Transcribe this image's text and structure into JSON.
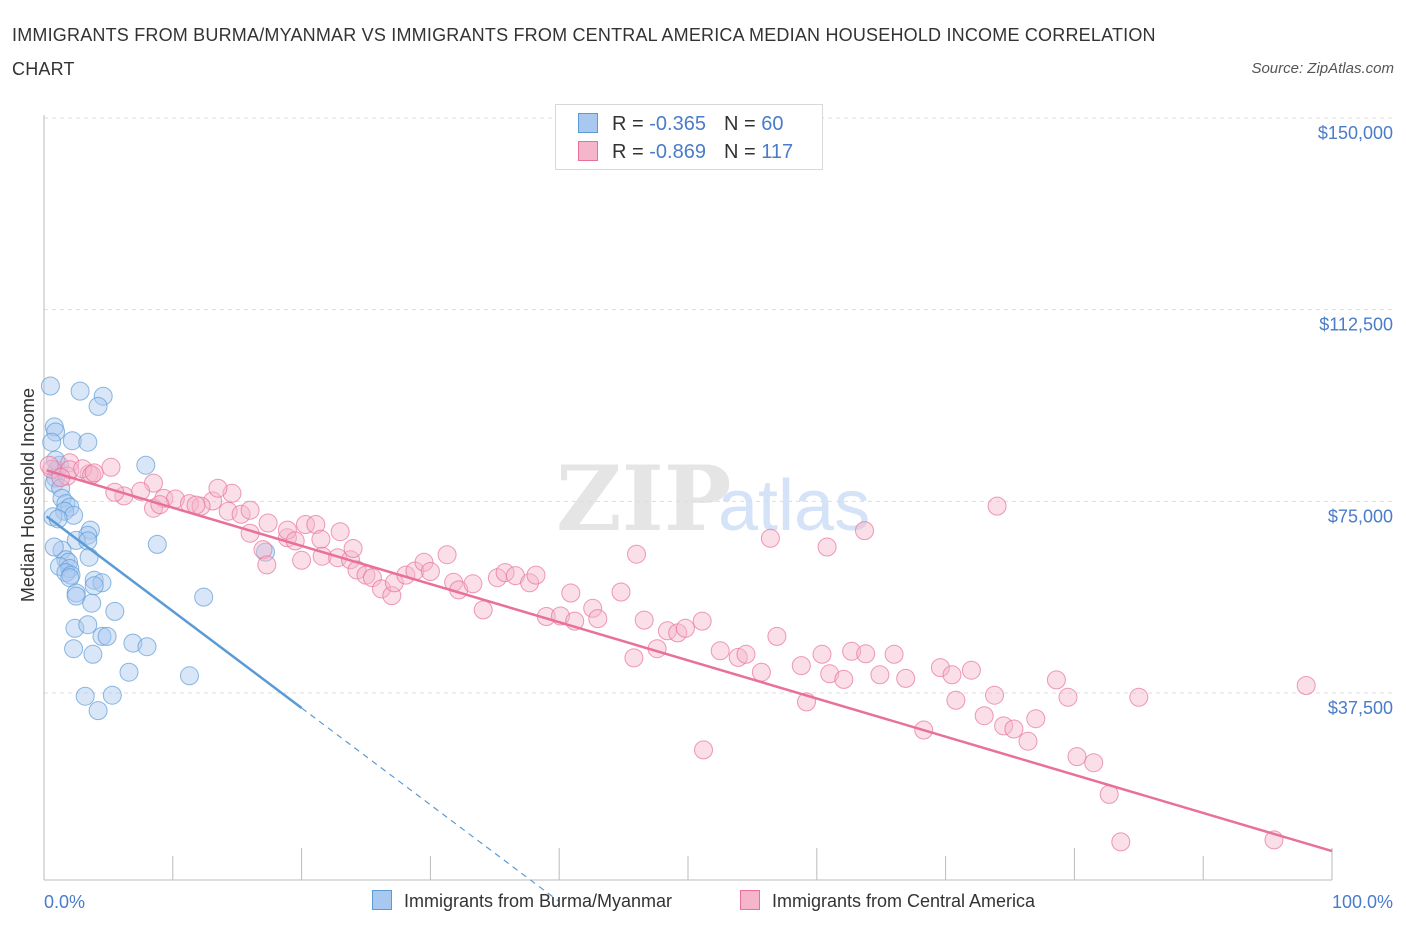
{
  "title": "IMMIGRANTS FROM BURMA/MYANMAR VS IMMIGRANTS FROM CENTRAL AMERICA MEDIAN HOUSEHOLD INCOME CORRELATION CHART",
  "source": "Source: ZipAtlas.com",
  "watermark": {
    "zip": "ZIP",
    "atlas": "atlas"
  },
  "legend": [
    {
      "r_label": "R = ",
      "r_value": "-0.365",
      "n_label": "N = ",
      "n_value": "60",
      "color": "#a9c8f0"
    },
    {
      "r_label": "R = ",
      "r_value": "-0.869",
      "n_label": "N = ",
      "n_value": "117",
      "color": "#f5b6cb"
    }
  ],
  "chart_data": {
    "type": "scatter",
    "ylabel": "Median Household Income",
    "xlabel": "",
    "xlim": [
      0,
      100
    ],
    "ylim": [
      0,
      150000
    ],
    "x_tick_labels": [
      "0.0%",
      "100.0%"
    ],
    "y_ticks": [
      {
        "value": 37500,
        "label": "$37,500"
      },
      {
        "value": 75000,
        "label": "$75,000"
      },
      {
        "value": 112500,
        "label": "$112,500"
      },
      {
        "value": 150000,
        "label": "$150,000"
      }
    ],
    "grid": "horizontal dashed",
    "legend_placement": "top-center",
    "series": [
      {
        "name": "Immigrants from Burma/Myanmar",
        "color": "#5b9bd5",
        "fill": "#a9c8f0",
        "trend": {
          "x0": 0.2,
          "y0": 75000,
          "x1": 20,
          "y1": 37500,
          "dashed_to_x": 40
        },
        "points": [
          [
            0.5,
            100500
          ],
          [
            2.8,
            99500
          ],
          [
            4.6,
            98500
          ],
          [
            4.2,
            96500
          ],
          [
            0.8,
            92500
          ],
          [
            0.9,
            91500
          ],
          [
            2.2,
            89800
          ],
          [
            3.4,
            89500
          ],
          [
            0.6,
            89500
          ],
          [
            7.9,
            85000
          ],
          [
            1.0,
            84000
          ],
          [
            0.9,
            82500
          ],
          [
            0.8,
            81500
          ],
          [
            1.3,
            80500
          ],
          [
            1.4,
            78500
          ],
          [
            1.7,
            77500
          ],
          [
            2.0,
            76800
          ],
          [
            1.6,
            76000
          ],
          [
            2.3,
            75200
          ],
          [
            0.7,
            74900
          ],
          [
            1.1,
            74500
          ],
          [
            3.6,
            72300
          ],
          [
            3.4,
            71300
          ],
          [
            2.5,
            70300
          ],
          [
            3.4,
            70200
          ],
          [
            8.8,
            69500
          ],
          [
            1.4,
            68400
          ],
          [
            0.8,
            69000
          ],
          [
            17.2,
            68000
          ],
          [
            3.5,
            67000
          ],
          [
            1.7,
            66500
          ],
          [
            1.9,
            66000
          ],
          [
            1.2,
            65200
          ],
          [
            2.0,
            64800
          ],
          [
            1.7,
            64000
          ],
          [
            2.1,
            63500
          ],
          [
            2.0,
            63000
          ],
          [
            3.9,
            62500
          ],
          [
            4.5,
            62000
          ],
          [
            3.9,
            61400
          ],
          [
            2.5,
            60000
          ],
          [
            2.5,
            59400
          ],
          [
            12.4,
            59200
          ],
          [
            3.7,
            58000
          ],
          [
            5.5,
            56400
          ],
          [
            2.4,
            53100
          ],
          [
            3.4,
            53800
          ],
          [
            4.5,
            51500
          ],
          [
            6.9,
            50200
          ],
          [
            8.0,
            49500
          ],
          [
            2.3,
            49100
          ],
          [
            3.8,
            48000
          ],
          [
            4.9,
            51500
          ],
          [
            6.6,
            44500
          ],
          [
            11.3,
            43800
          ],
          [
            3.2,
            39800
          ],
          [
            5.3,
            40000
          ],
          [
            4.2,
            37000
          ],
          [
            1.2,
            85000
          ],
          [
            0.9,
            86000
          ]
        ]
      },
      {
        "name": "Immigrants from Central America",
        "color": "#e8709a",
        "fill": "#f5b6cb",
        "trend": {
          "x0": 0.2,
          "y0": 84000,
          "x1": 100,
          "y1": 9500
        },
        "points": [
          [
            0.6,
            84200
          ],
          [
            0.4,
            85000
          ],
          [
            2.0,
            85500
          ],
          [
            1.8,
            82900
          ],
          [
            3.5,
            83300
          ],
          [
            5.2,
            84600
          ],
          [
            2.0,
            84100
          ],
          [
            3.0,
            84300
          ],
          [
            3.7,
            83100
          ],
          [
            1.3,
            82600
          ],
          [
            3.9,
            83500
          ],
          [
            6.2,
            79000
          ],
          [
            5.5,
            79700
          ],
          [
            8.5,
            81500
          ],
          [
            7.5,
            79900
          ],
          [
            9.3,
            78500
          ],
          [
            10.2,
            78400
          ],
          [
            11.3,
            77500
          ],
          [
            13.1,
            78000
          ],
          [
            14.6,
            79500
          ],
          [
            13.5,
            80500
          ],
          [
            12.2,
            77000
          ],
          [
            11.8,
            77200
          ],
          [
            8.5,
            76600
          ],
          [
            9.0,
            77300
          ],
          [
            14.3,
            76000
          ],
          [
            15.3,
            75400
          ],
          [
            16.0,
            71700
          ],
          [
            17.0,
            68500
          ],
          [
            16.0,
            76200
          ],
          [
            17.4,
            73700
          ],
          [
            20.3,
            73400
          ],
          [
            21.1,
            73400
          ],
          [
            21.5,
            70500
          ],
          [
            23.0,
            72000
          ],
          [
            18.9,
            70800
          ],
          [
            18.9,
            72300
          ],
          [
            17.3,
            65500
          ],
          [
            20.0,
            66400
          ],
          [
            19.5,
            70200
          ],
          [
            21.6,
            67200
          ],
          [
            22.8,
            66900
          ],
          [
            23.8,
            66500
          ],
          [
            24.3,
            64500
          ],
          [
            24.0,
            68700
          ],
          [
            25.0,
            63500
          ],
          [
            25.5,
            63000
          ],
          [
            26.2,
            60800
          ],
          [
            27.0,
            59500
          ],
          [
            27.2,
            62000
          ],
          [
            28.1,
            63500
          ],
          [
            28.8,
            64300
          ],
          [
            29.5,
            66000
          ],
          [
            30.0,
            64200
          ],
          [
            31.3,
            67500
          ],
          [
            31.8,
            62100
          ],
          [
            32.2,
            60600
          ],
          [
            33.3,
            61800
          ],
          [
            34.1,
            56700
          ],
          [
            35.2,
            63000
          ],
          [
            35.8,
            64000
          ],
          [
            36.6,
            63400
          ],
          [
            37.7,
            62000
          ],
          [
            38.2,
            63500
          ],
          [
            39.0,
            55400
          ],
          [
            40.1,
            55500
          ],
          [
            40.9,
            60000
          ],
          [
            41.2,
            54500
          ],
          [
            42.6,
            57000
          ],
          [
            43.0,
            55000
          ],
          [
            44.8,
            60200
          ],
          [
            46.0,
            67600
          ],
          [
            46.6,
            54700
          ],
          [
            47.6,
            49100
          ],
          [
            48.4,
            52600
          ],
          [
            49.2,
            52200
          ],
          [
            49.8,
            53100
          ],
          [
            51.1,
            54500
          ],
          [
            52.5,
            48700
          ],
          [
            53.9,
            47400
          ],
          [
            54.5,
            48000
          ],
          [
            55.7,
            44500
          ],
          [
            56.9,
            51500
          ],
          [
            58.8,
            45800
          ],
          [
            60.4,
            48000
          ],
          [
            61.0,
            44200
          ],
          [
            62.1,
            43100
          ],
          [
            62.7,
            48600
          ],
          [
            63.8,
            48100
          ],
          [
            64.9,
            44000
          ],
          [
            66.0,
            48000
          ],
          [
            66.9,
            43300
          ],
          [
            68.3,
            33200
          ],
          [
            69.6,
            45400
          ],
          [
            70.8,
            39000
          ],
          [
            72.0,
            44900
          ],
          [
            73.0,
            36000
          ],
          [
            74.5,
            34000
          ],
          [
            75.3,
            33400
          ],
          [
            76.4,
            31000
          ],
          [
            77.0,
            35400
          ],
          [
            78.6,
            43000
          ],
          [
            79.5,
            39600
          ],
          [
            80.2,
            28000
          ],
          [
            81.5,
            26800
          ],
          [
            82.7,
            20600
          ],
          [
            83.6,
            11300
          ],
          [
            85.0,
            39600
          ],
          [
            73.8,
            40000
          ],
          [
            70.5,
            44000
          ],
          [
            63.7,
            72200
          ],
          [
            60.8,
            69000
          ],
          [
            95.5,
            11700
          ],
          [
            98.0,
            41900
          ],
          [
            74.0,
            77000
          ],
          [
            56.4,
            70700
          ],
          [
            59.2,
            38700
          ],
          [
            51.2,
            29300
          ],
          [
            45.8,
            47300
          ]
        ]
      }
    ]
  }
}
